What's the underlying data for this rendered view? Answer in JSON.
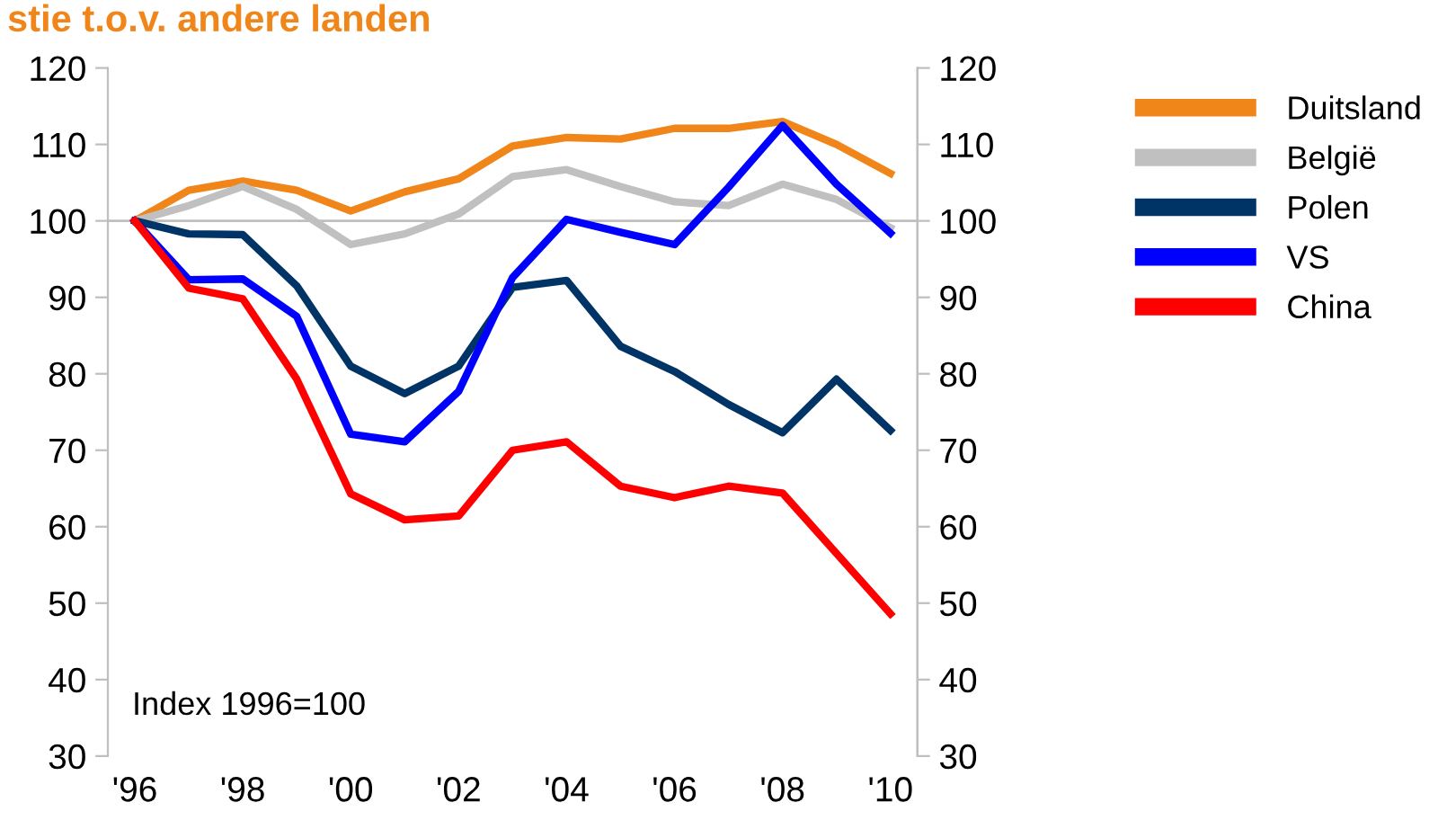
{
  "chart_data": {
    "type": "line",
    "title": "stie t.o.v. andere landen",
    "x": [
      1996,
      1997,
      1998,
      1999,
      2000,
      2001,
      2002,
      2003,
      2004,
      2005,
      2006,
      2007,
      2008,
      2009,
      2010
    ],
    "series": [
      {
        "name": "Duitsland",
        "color": "#f08519",
        "values": [
          100,
          104,
          105.2,
          104,
          101.3,
          103.8,
          105.5,
          109.8,
          110.9,
          110.7,
          112.1,
          112.1,
          113,
          110,
          106.2
        ]
      },
      {
        "name": "België",
        "color": "#c0c0c0",
        "values": [
          100,
          102,
          104.5,
          101.5,
          96.9,
          98.3,
          100.9,
          105.8,
          106.7,
          104.5,
          102.5,
          102,
          104.8,
          102.8,
          99.1
        ]
      },
      {
        "name": "Polen",
        "color": "#003366",
        "values": [
          100,
          98.3,
          98.2,
          91.5,
          81,
          77.4,
          81,
          91.3,
          92.2,
          83.6,
          80.3,
          76,
          72.3,
          79.3,
          72.6
        ]
      },
      {
        "name": "VS",
        "color": "#0000ff",
        "values": [
          100,
          92.3,
          92.4,
          87.5,
          72.1,
          71.1,
          77.7,
          92.6,
          100.2,
          98.5,
          96.9,
          104.4,
          112.5,
          104.8,
          98.4
        ]
      },
      {
        "name": "China",
        "color": "#ff0000",
        "values": [
          100,
          91.2,
          89.8,
          79.3,
          64.3,
          60.9,
          61.4,
          70,
          71.1,
          65.3,
          63.8,
          65.3,
          64.4,
          56.5,
          48.6
        ]
      }
    ],
    "xlim": [
      1995.5,
      2010.5
    ],
    "xticks": [
      {
        "value": 1996,
        "label": "'96"
      },
      {
        "value": 1998,
        "label": "'98"
      },
      {
        "value": 2000,
        "label": "'00"
      },
      {
        "value": 2002,
        "label": "'02"
      },
      {
        "value": 2004,
        "label": "'04"
      },
      {
        "value": 2006,
        "label": "'06"
      },
      {
        "value": 2008,
        "label": "'08"
      },
      {
        "value": 2010,
        "label": "'10"
      }
    ],
    "ref_lines": [
      {
        "axis": "y",
        "value": 100,
        "color": "#bfbfbf"
      }
    ],
    "ylim": [
      30,
      120
    ],
    "yticks": [
      30,
      40,
      50,
      60,
      70,
      80,
      90,
      100,
      110,
      120
    ],
    "y2lim": [
      30,
      120
    ],
    "y2ticks": [
      30,
      40,
      50,
      60,
      70,
      80,
      90,
      100,
      110,
      120
    ],
    "annotations": [
      "Index 1996=100"
    ],
    "grid": false,
    "legend": "right",
    "marker": "none",
    "line_style": "solid"
  }
}
